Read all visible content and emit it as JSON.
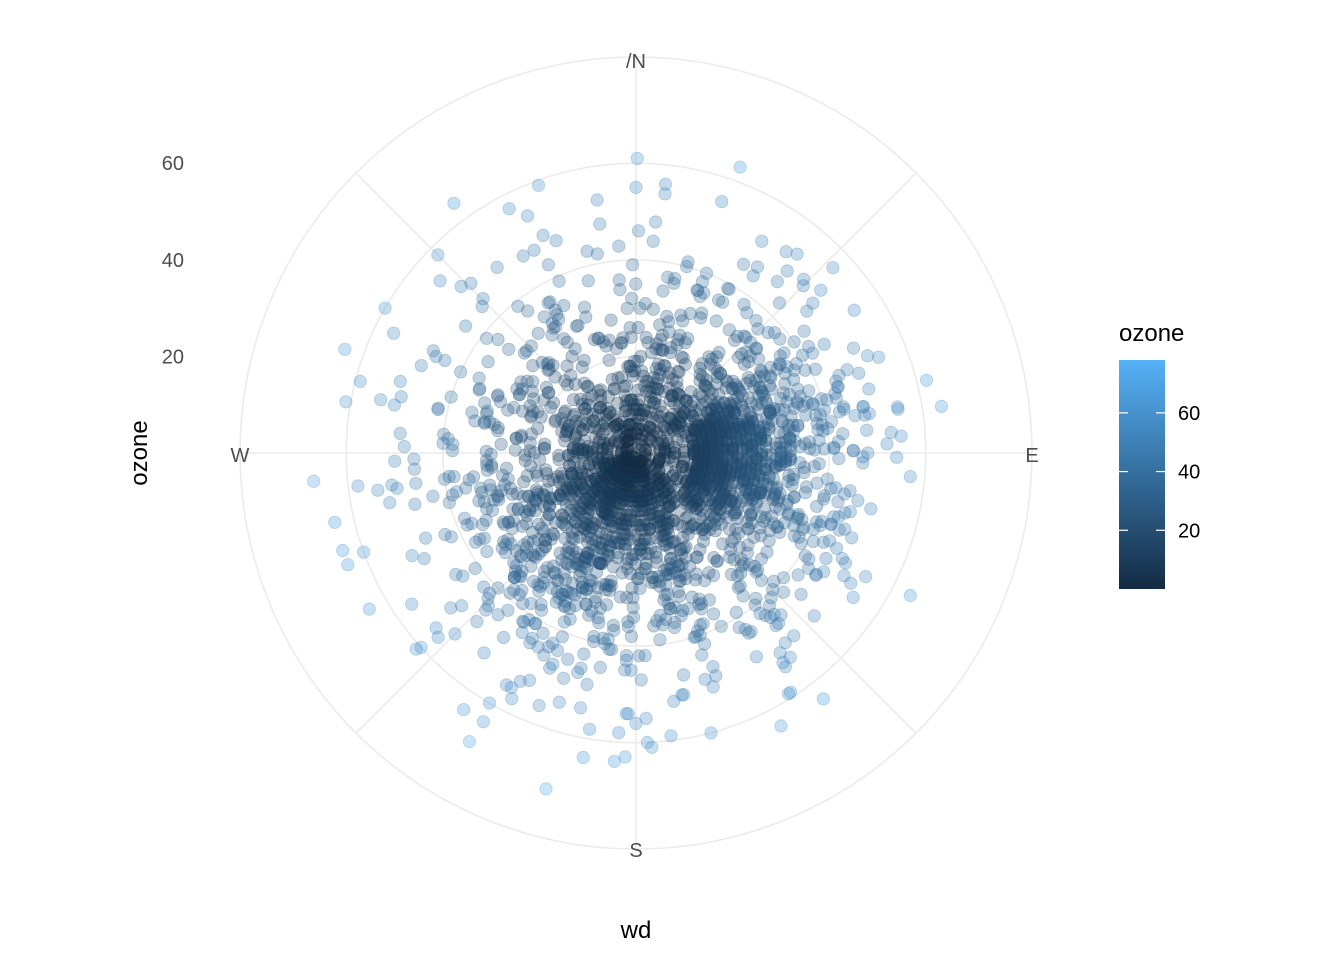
{
  "chart_data": {
    "type": "scatter",
    "coord": "polar",
    "title": "",
    "xlabel": "wd",
    "ylabel": "ozone",
    "x_ticks": [
      "/N",
      "E",
      "S",
      "W"
    ],
    "x_range": [
      0,
      360
    ],
    "y_ticks": [
      20,
      40,
      60
    ],
    "y_range": [
      0,
      82
    ],
    "grid": true,
    "point_alpha": 0.3,
    "legend": {
      "title": "ozone",
      "position": "right",
      "type": "colorbar",
      "ticks": [
        20,
        40,
        60
      ],
      "range": [
        0,
        78
      ],
      "color_low": "#132B43",
      "color_high": "#56B1F7"
    },
    "sample_points": [
      {
        "wd": 0,
        "ozone": 55
      },
      {
        "wd": 20,
        "ozone": 63
      },
      {
        "wd": 45,
        "ozone": 49
      },
      {
        "wd": 60,
        "ozone": 45
      },
      {
        "wd": 80,
        "ozone": 55
      },
      {
        "wd": 90,
        "ozone": 48
      },
      {
        "wd": 100,
        "ozone": 45
      },
      {
        "wd": 135,
        "ozone": 40
      },
      {
        "wd": 165,
        "ozone": 60
      },
      {
        "wd": 180,
        "ozone": 56
      },
      {
        "wd": 195,
        "ozone": 72
      },
      {
        "wd": 210,
        "ozone": 69
      },
      {
        "wd": 225,
        "ozone": 53
      },
      {
        "wd": 250,
        "ozone": 60
      },
      {
        "wd": 265,
        "ozone": 67
      },
      {
        "wd": 280,
        "ozone": 61
      },
      {
        "wd": 300,
        "ozone": 60
      },
      {
        "wd": 315,
        "ozone": 58
      },
      {
        "wd": 340,
        "ozone": 59
      }
    ]
  }
}
